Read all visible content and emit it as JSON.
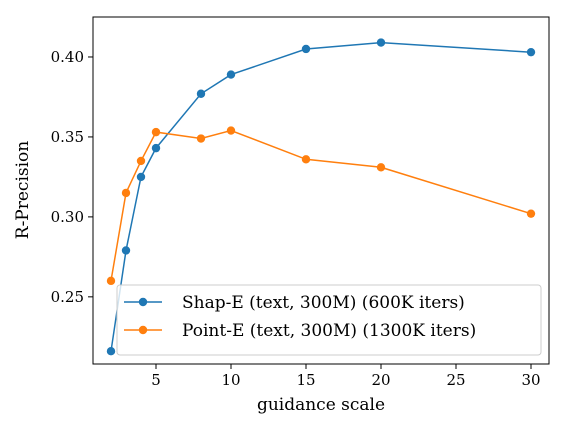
{
  "chart_data": {
    "type": "line",
    "title": "",
    "xlabel": "guidance scale",
    "ylabel": "R-Precision",
    "xlim": [
      0.8,
      31.2
    ],
    "ylim": [
      0.208,
      0.425
    ],
    "x_ticks": [
      5,
      10,
      15,
      20,
      25,
      30
    ],
    "x_tick_labels": [
      "5",
      "10",
      "15",
      "20",
      "25",
      "30"
    ],
    "y_ticks": [
      0.25,
      0.3,
      0.35,
      0.4
    ],
    "y_tick_labels": [
      "0.25",
      "0.30",
      "0.35",
      "0.40"
    ],
    "grid": false,
    "legend_position": "lower-right",
    "series": [
      {
        "name": "Shap-E (text, 300M) (600K iters)",
        "color": "#1f77b4",
        "x": [
          2,
          3,
          4,
          5,
          8,
          10,
          15,
          20,
          30
        ],
        "y": [
          0.216,
          0.279,
          0.325,
          0.343,
          0.377,
          0.389,
          0.405,
          0.409,
          0.403
        ]
      },
      {
        "name": "Point-E (text, 300M) (1300K iters)",
        "color": "#ff7f0e",
        "x": [
          2,
          3,
          4,
          5,
          8,
          10,
          15,
          20,
          30
        ],
        "y": [
          0.26,
          0.315,
          0.335,
          0.353,
          0.349,
          0.354,
          0.336,
          0.331,
          0.302
        ]
      }
    ]
  }
}
